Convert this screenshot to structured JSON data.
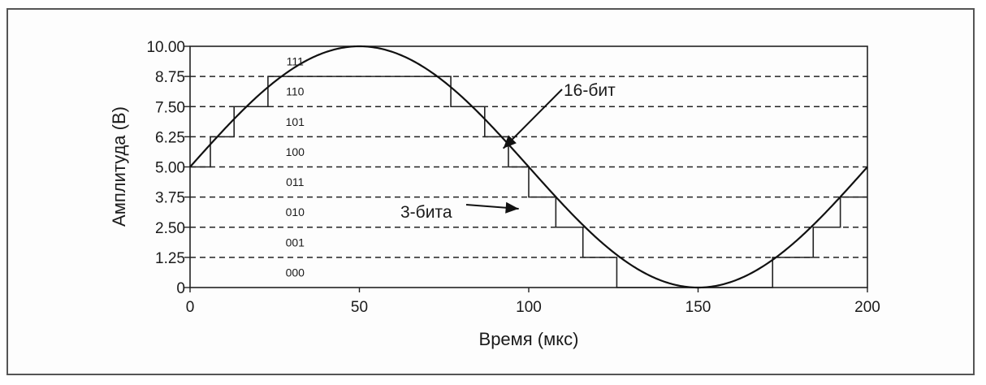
{
  "chart_data": {
    "type": "line",
    "xlabel": "Время (мкс)",
    "ylabel": "Амплитуда (В)",
    "xlim": [
      0,
      200
    ],
    "ylim": [
      0,
      10
    ],
    "x_ticks": [
      "0",
      "50",
      "100",
      "150",
      "200"
    ],
    "y_ticks": [
      "0",
      "1.25",
      "2.50",
      "3.75",
      "5.00",
      "6.25",
      "7.50",
      "8.75",
      "10.00"
    ],
    "grid": "horizontal dashed at quantization levels",
    "codes": [
      "000",
      "001",
      "010",
      "011",
      "100",
      "101",
      "110",
      "111"
    ],
    "series": [
      {
        "name": "16-бит",
        "x": [
          0,
          10,
          20,
          30,
          40,
          50,
          60,
          70,
          80,
          90,
          100,
          110,
          120,
          130,
          140,
          150,
          160,
          170,
          180,
          190,
          200
        ],
        "values": [
          5.0,
          6.55,
          7.94,
          9.05,
          9.76,
          10.0,
          9.76,
          9.05,
          7.94,
          6.55,
          5.0,
          3.45,
          2.06,
          0.95,
          0.24,
          0.0,
          0.24,
          0.95,
          2.06,
          3.45,
          5.0
        ]
      },
      {
        "name": "3-бита",
        "steps": [
          {
            "x0": 0,
            "x1": 6,
            "y": 5.0
          },
          {
            "x0": 6,
            "x1": 13,
            "y": 6.25
          },
          {
            "x0": 13,
            "x1": 23,
            "y": 7.5
          },
          {
            "x0": 23,
            "x1": 77,
            "y": 8.75
          },
          {
            "x0": 77,
            "x1": 87,
            "y": 7.5
          },
          {
            "x0": 87,
            "x1": 94,
            "y": 6.25
          },
          {
            "x0": 94,
            "x1": 100,
            "y": 5.0
          },
          {
            "x0": 100,
            "x1": 108,
            "y": 3.75
          },
          {
            "x0": 108,
            "x1": 116,
            "y": 2.5
          },
          {
            "x0": 116,
            "x1": 126,
            "y": 1.25
          },
          {
            "x0": 126,
            "x1": 172,
            "y": 0.0
          },
          {
            "x0": 172,
            "x1": 184,
            "y": 1.25
          },
          {
            "x0": 184,
            "x1": 192,
            "y": 2.5
          },
          {
            "x0": 192,
            "x1": 200,
            "y": 3.75
          }
        ]
      }
    ],
    "annotations": [
      {
        "text": "16-бит",
        "target_x": 92,
        "target_y": 5.7
      },
      {
        "text": "3-бита",
        "target_x": 98,
        "target_y": 3.3
      }
    ]
  }
}
